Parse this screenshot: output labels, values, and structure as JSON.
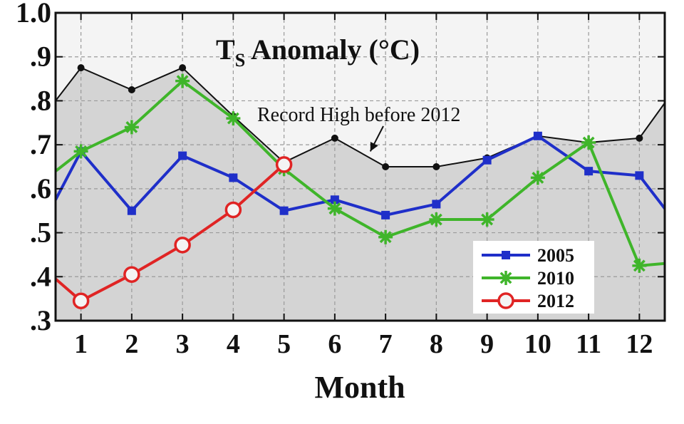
{
  "chart_data": {
    "type": "line",
    "title_main": "T",
    "title_sub": "S",
    "title_rest": " Anomaly (°C)",
    "xlabel": "Month",
    "ylabel": "",
    "xlim": [
      0.5,
      12.5
    ],
    "ylim": [
      0.3,
      1.0
    ],
    "x_ticks": [
      1,
      2,
      3,
      4,
      5,
      6,
      7,
      8,
      9,
      10,
      11,
      12
    ],
    "x_tick_labels": [
      "1",
      "2",
      "3",
      "4",
      "5",
      "6",
      "7",
      "8",
      "9",
      "10",
      "11",
      "12"
    ],
    "y_ticks": [
      0.3,
      0.4,
      0.5,
      0.6,
      0.7,
      0.8,
      0.9,
      1.0
    ],
    "y_tick_labels": [
      ".3",
      ".4",
      ".5",
      ".6",
      ".7",
      ".8",
      ".9",
      "1.0"
    ],
    "top_labels": [
      "",
      "",
      "",
      "",
      "",
      "",
      "",
      "",
      "",
      "",
      "",
      ""
    ],
    "grid": true,
    "record_high": {
      "name": "Record High before 2012",
      "x": [
        0.5,
        1,
        2,
        3,
        4,
        5,
        6,
        7,
        8,
        9,
        10,
        11,
        12,
        12.5
      ],
      "y": [
        0.8,
        0.875,
        0.825,
        0.875,
        0.765,
        0.66,
        0.715,
        0.65,
        0.65,
        0.67,
        0.72,
        0.705,
        0.715,
        0.795
      ],
      "fill_color": "#d4d4d4",
      "line_color": "#111111"
    },
    "annotation": {
      "text": "Record High before 2012",
      "arrow_to": [
        6.7,
        0.685
      ]
    },
    "series": [
      {
        "name": "2005",
        "color": "#1f2fc9",
        "marker": "square",
        "x": [
          0.5,
          1,
          2,
          3,
          4,
          5,
          6,
          7,
          8,
          9,
          10,
          11,
          12,
          12.5
        ],
        "y": [
          0.575,
          0.685,
          0.55,
          0.675,
          0.625,
          0.55,
          0.575,
          0.54,
          0.565,
          0.665,
          0.72,
          0.64,
          0.63,
          0.555
        ]
      },
      {
        "name": "2010",
        "color": "#3fb52a",
        "marker": "star",
        "x": [
          0.5,
          1,
          2,
          3,
          4,
          5,
          6,
          7,
          8,
          9,
          10,
          11,
          12,
          12.5
        ],
        "y": [
          0.64,
          0.685,
          0.74,
          0.845,
          0.76,
          0.645,
          0.555,
          0.49,
          0.53,
          0.53,
          0.625,
          0.705,
          0.425,
          0.43
        ]
      },
      {
        "name": "2012",
        "color": "#e02424",
        "marker": "circle",
        "x": [
          0.5,
          1,
          2,
          3,
          4,
          5
        ],
        "y": [
          0.395,
          0.345,
          0.405,
          0.472,
          0.552,
          0.655
        ]
      }
    ],
    "legend_position": "lower-right"
  }
}
